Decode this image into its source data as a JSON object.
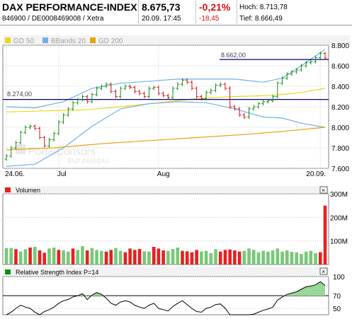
{
  "header": {
    "title": "DAX PERFORMANCE-INDEX",
    "ids": "846900 / DE0008469008 / Xetra",
    "price": "8.675,73",
    "datetime": "20.09. 17:45",
    "change_pct": "-0,21%",
    "change_abs": "-18,45",
    "high": "Hoch: 8.713,78",
    "low": "Tief: 8.666,49"
  },
  "legend": {
    "gd50": "GD 50",
    "bbands": "BBands 20",
    "gd200": "GD 200"
  },
  "colors": {
    "up": "#109010",
    "down": "#d01010",
    "gd50": "#e8d818",
    "bbands": "#70b0e8",
    "gd200": "#e8a010",
    "hline": "#000080",
    "vol_up": "#78c878",
    "vol_down": "#e82020",
    "rsi_fill": "#98d898"
  },
  "annotations": {
    "level_high": "8.662,00",
    "level_low": "8.274,00"
  },
  "watermark": {
    "line1": "PortalConsors",
    "line2": "BNP PARIBAS"
  },
  "volume_title": "Volumen",
  "rsi_title": "Relative Strength Index P=14",
  "chart_data": [
    {
      "type": "line",
      "title": "",
      "subtitle": "ohlc",
      "x_tick_labels": [
        "24.06.",
        "Jul",
        "Aug",
        "20.09."
      ],
      "y_tick_labels": [
        "8.800",
        "8.600",
        "8.400",
        "8.200",
        "8.000",
        "7.800",
        "7.600"
      ],
      "ylim": [
        7600,
        8800
      ],
      "horizontal_lines": [
        8662,
        8274
      ],
      "grid": true,
      "close": [
        7720,
        7800,
        7850,
        7950,
        8000,
        8010,
        7990,
        7900,
        7820,
        7880,
        7940,
        8050,
        8120,
        8180,
        8240,
        8270,
        8300,
        8250,
        8320,
        8380,
        8400,
        8420,
        8350,
        8300,
        8380,
        8400,
        8390,
        8350,
        8330,
        8300,
        8380,
        8390,
        8330,
        8310,
        8290,
        8380,
        8420,
        8460,
        8440,
        8380,
        8300,
        8280,
        8340,
        8360,
        8410,
        8420,
        8380,
        8200,
        8180,
        8120,
        8100,
        8180,
        8200,
        8230,
        8250,
        8260,
        8300,
        8430,
        8480,
        8520,
        8540,
        8560,
        8600,
        8630,
        8640,
        8680,
        8720,
        8676
      ],
      "series": [
        {
          "name": "GD 50",
          "values": [
            {
              "x": 0,
              "y": 8150
            },
            {
              "x": 8,
              "y": 8160
            },
            {
              "x": 16,
              "y": 8170
            },
            {
              "x": 24,
              "y": 8200
            },
            {
              "x": 32,
              "y": 8240
            },
            {
              "x": 40,
              "y": 8280
            },
            {
              "x": 48,
              "y": 8300
            },
            {
              "x": 56,
              "y": 8310
            },
            {
              "x": 62,
              "y": 8340
            },
            {
              "x": 67,
              "y": 8380
            }
          ]
        },
        {
          "name": "BBands 20",
          "values": [
            {
              "x": 0,
              "y": 8200
            },
            {
              "x": 6,
              "y": 8190
            },
            {
              "x": 12,
              "y": 8250
            },
            {
              "x": 18,
              "y": 8380
            },
            {
              "x": 24,
              "y": 8430
            },
            {
              "x": 30,
              "y": 8450
            },
            {
              "x": 36,
              "y": 8470
            },
            {
              "x": 42,
              "y": 8470
            },
            {
              "x": 48,
              "y": 8470
            },
            {
              "x": 54,
              "y": 8440
            },
            {
              "x": 58,
              "y": 8480
            },
            {
              "x": 62,
              "y": 8600
            },
            {
              "x": 67,
              "y": 8760
            }
          ]
        },
        {
          "name": "BBands 20 lower",
          "values": [
            {
              "x": 0,
              "y": 7620
            },
            {
              "x": 6,
              "y": 7640
            },
            {
              "x": 12,
              "y": 7800
            },
            {
              "x": 18,
              "y": 8010
            },
            {
              "x": 24,
              "y": 8180
            },
            {
              "x": 30,
              "y": 8230
            },
            {
              "x": 36,
              "y": 8250
            },
            {
              "x": 42,
              "y": 8240
            },
            {
              "x": 48,
              "y": 8180
            },
            {
              "x": 54,
              "y": 8100
            },
            {
              "x": 58,
              "y": 8090
            },
            {
              "x": 62,
              "y": 8040
            },
            {
              "x": 67,
              "y": 8000
            }
          ]
        },
        {
          "name": "GD 200",
          "values": [
            {
              "x": 0,
              "y": 7780
            },
            {
              "x": 10,
              "y": 7800
            },
            {
              "x": 20,
              "y": 7840
            },
            {
              "x": 30,
              "y": 7870
            },
            {
              "x": 40,
              "y": 7900
            },
            {
              "x": 50,
              "y": 7930
            },
            {
              "x": 58,
              "y": 7960
            },
            {
              "x": 67,
              "y": 8000
            }
          ]
        }
      ]
    },
    {
      "type": "bar",
      "title": "Volumen",
      "y_tick_labels": [
        "300M",
        "200M",
        "100M"
      ],
      "ylim": [
        0,
        300
      ],
      "values": [
        70,
        70,
        65,
        55,
        65,
        72,
        75,
        60,
        50,
        68,
        72,
        62,
        60,
        55,
        68,
        62,
        78,
        60,
        70,
        62,
        58,
        55,
        62,
        70,
        58,
        52,
        68,
        62,
        66,
        56,
        55,
        75,
        68,
        60,
        58,
        66,
        72,
        58,
        56,
        52,
        62,
        55,
        58,
        48,
        65,
        55,
        62,
        64,
        60,
        55,
        58,
        68,
        62,
        52,
        58,
        55,
        60,
        68,
        55,
        60,
        54,
        52,
        45,
        55,
        58,
        48,
        52,
        250
      ],
      "up": [
        1,
        1,
        0,
        1,
        1,
        0,
        1,
        0,
        0,
        1,
        1,
        0,
        1,
        1,
        0,
        1,
        1,
        0,
        1,
        1,
        1,
        0,
        0,
        1,
        1,
        0,
        0,
        0,
        0,
        1,
        1,
        0,
        0,
        0,
        1,
        1,
        1,
        0,
        0,
        0,
        0,
        1,
        1,
        1,
        1,
        0,
        0,
        0,
        0,
        0,
        1,
        1,
        1,
        1,
        1,
        1,
        1,
        1,
        1,
        1,
        1,
        1,
        1,
        1,
        1,
        1,
        0,
        0
      ]
    },
    {
      "type": "area",
      "title": "Relative Strength Index P=14",
      "y_tick_labels": [
        "100",
        "70",
        "50"
      ],
      "ylim": [
        0,
        100
      ],
      "values": [
        38,
        44,
        50,
        55,
        52,
        50,
        44,
        40,
        45,
        48,
        52,
        58,
        62,
        64,
        68,
        70,
        73,
        64,
        71,
        75,
        72,
        66,
        58,
        55,
        60,
        62,
        60,
        55,
        52,
        50,
        55,
        58,
        50,
        48,
        46,
        53,
        58,
        62,
        56,
        50,
        45,
        44,
        50,
        52,
        56,
        57,
        50,
        40,
        37,
        32,
        31,
        38,
        41,
        44,
        47,
        49,
        52,
        63,
        68,
        72,
        74,
        76,
        80,
        84,
        85,
        87,
        92,
        86
      ]
    }
  ]
}
